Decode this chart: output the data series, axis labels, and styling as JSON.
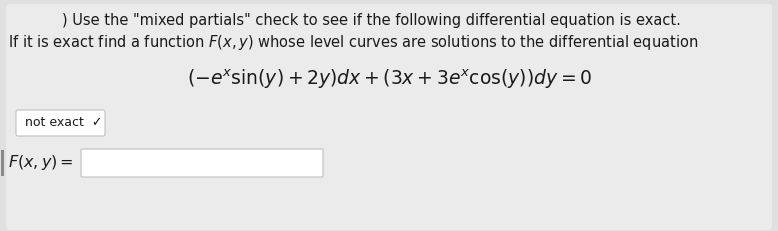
{
  "bg_color": "#e0e0e0",
  "panel_color": "#ebebeb",
  "line1": ") Use the \"mixed partials\" check to see if the following differential equation is exact.",
  "line2": "If it is exact find a function $\\mathbf{F}(x, y)$ whose level curves are solutions to the differential equation",
  "equation": "$(-e^x \\sin(y) + 2y)dx + (3x + 3e^x \\cos(y))dy = 0$",
  "dropdown_label": "not exact  ✓",
  "input_label": "$\\mathbf{F}(x, y) =$",
  "text_color": "#1a1a1a",
  "box_bg": "#ffffff",
  "box_border": "#c0c0c0",
  "font_size_text": 10.5,
  "font_size_eq": 13.5,
  "fig_w": 7.78,
  "fig_h": 2.31,
  "dpi": 100
}
